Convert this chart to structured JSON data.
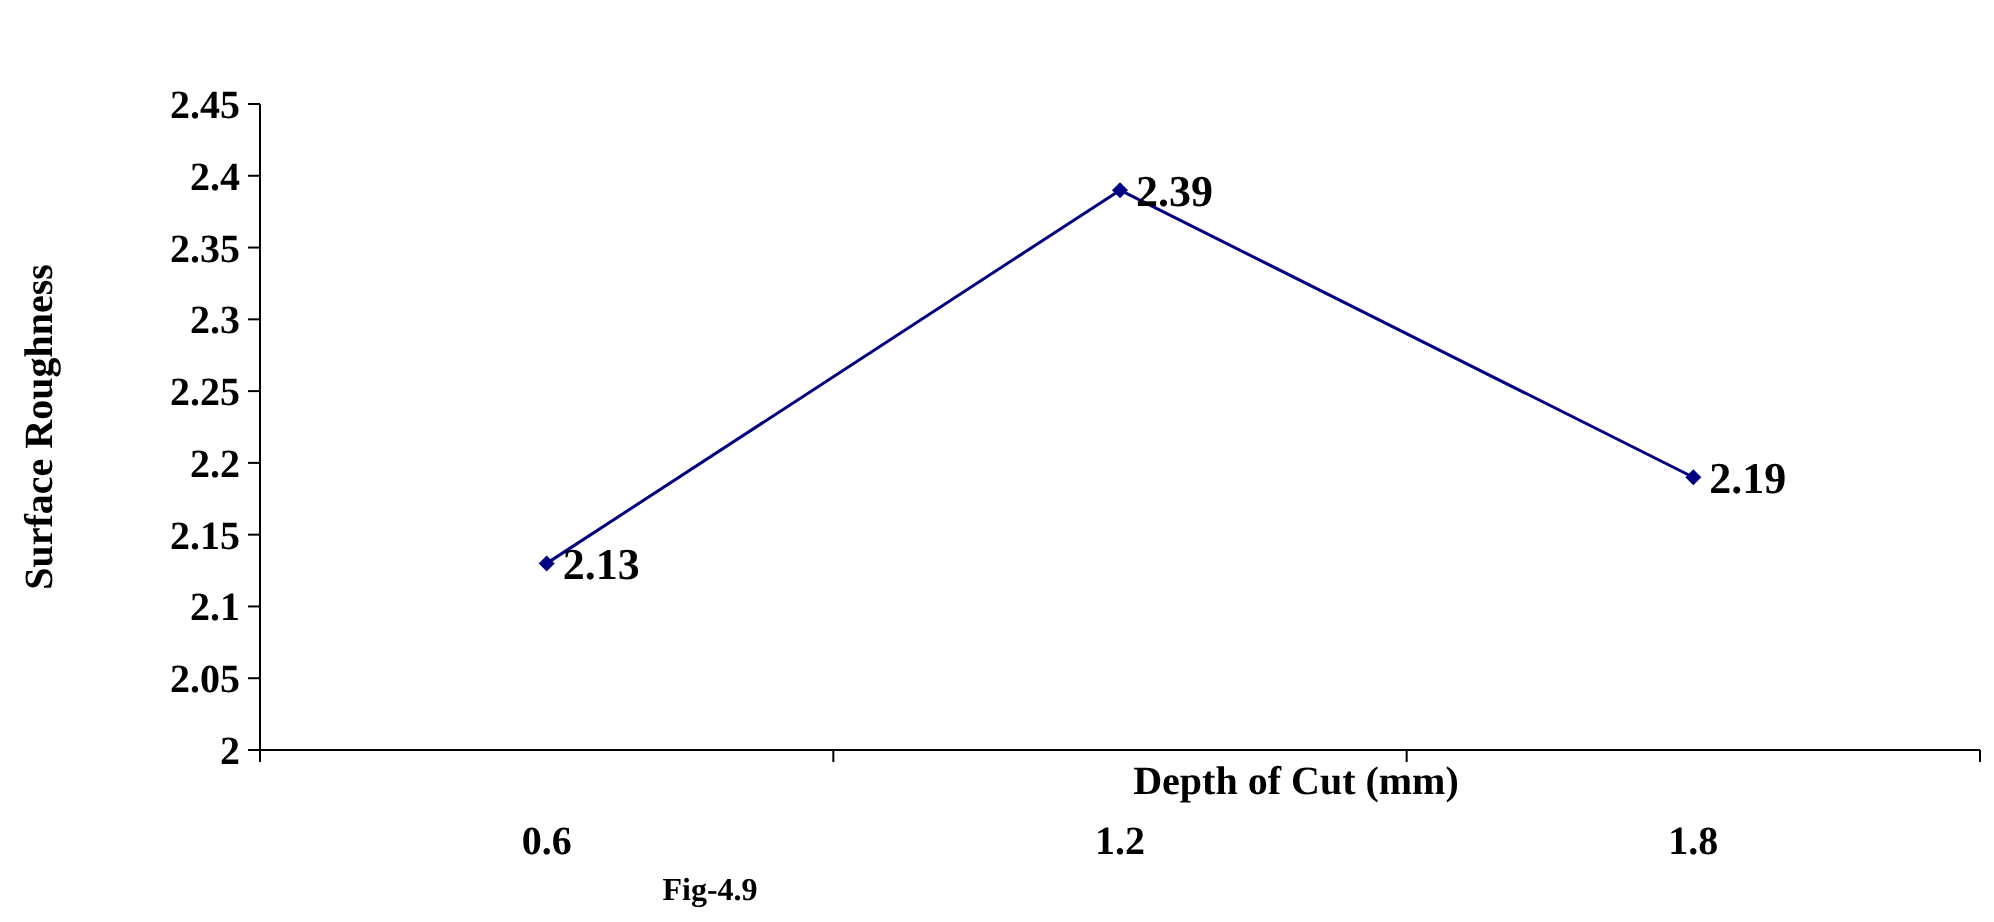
{
  "chart_data": {
    "type": "line",
    "categories": [
      "0.6",
      "1.2",
      "1.8"
    ],
    "series": [
      {
        "color": "#000080",
        "values": [
          2.13,
          2.39,
          2.19
        ]
      }
    ],
    "ylim": [
      2,
      2.45
    ],
    "yticks": [
      {
        "value": 2,
        "label": "2"
      },
      {
        "value": 2.05,
        "label": "2.05"
      },
      {
        "value": 2.1,
        "label": "2.1"
      },
      {
        "value": 2.15,
        "label": "2.15"
      },
      {
        "value": 2.2,
        "label": "2.2"
      },
      {
        "value": 2.25,
        "label": "2.25"
      },
      {
        "value": 2.3,
        "label": "2.3"
      },
      {
        "value": 2.35,
        "label": "2.35"
      },
      {
        "value": 2.4,
        "label": "2.4"
      },
      {
        "value": 2.45,
        "label": "2.45"
      }
    ],
    "xlabel": "Depth of Cut (mm)",
    "ylabel": "Surface Roughness",
    "annotations": [
      "Fig-4.9"
    ],
    "data_labels": true,
    "marker": "diamond",
    "line_style": "solid",
    "grid": false
  }
}
